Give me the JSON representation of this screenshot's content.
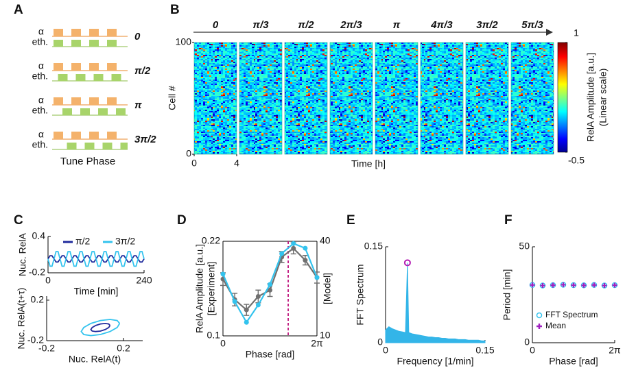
{
  "panels": [
    "A",
    "B",
    "C",
    "D",
    "E",
    "F"
  ],
  "panel_a": {
    "alpha_label": "α",
    "eth_label": "eth.",
    "phases": [
      "0",
      "π/2",
      "π",
      "3π/2"
    ],
    "caption": "Tune Phase"
  },
  "chart_data": [
    {
      "type": "heatmap",
      "columns": [
        "0",
        "π/3",
        "π/2",
        "2π/3",
        "π",
        "4π/3",
        "3π/2",
        "5π/3"
      ],
      "xlabel": "Time [h]",
      "ylabel": "Cell #",
      "xlim": [
        0,
        4
      ],
      "xticks": [
        0,
        4
      ],
      "ylim": [
        0,
        100
      ],
      "yticks": [
        0,
        100
      ],
      "colorbar": {
        "lim": [
          -0.5,
          1
        ],
        "ticks": [
          -0.5,
          1
        ],
        "label": "RelA Amplitude [a.u.]",
        "sublabel": "(Linear scale)"
      }
    },
    {
      "type": "line",
      "xlabel": "Time [min]",
      "ylabel": "Nuc. RelA",
      "xlim": [
        0,
        240
      ],
      "xticks": [
        0,
        240
      ],
      "ylim": [
        -0.2,
        0.4
      ],
      "yticks": [
        -0.2,
        0.4
      ],
      "legend": "upper right",
      "x": [
        0,
        5,
        10,
        15,
        20,
        25,
        30,
        35,
        40,
        45,
        50,
        55,
        60,
        65,
        70,
        75,
        80,
        85,
        90,
        95,
        100,
        105,
        110,
        115,
        120,
        125,
        130,
        135,
        140,
        145,
        150,
        155,
        160,
        165,
        170,
        175,
        180,
        185,
        190,
        195,
        200,
        205,
        210,
        215,
        220,
        225,
        230,
        235,
        240
      ],
      "series": [
        {
          "name": "π/2",
          "color": "#1f2a9c",
          "values": [
            0.03,
            0.082,
            0.082,
            0.03,
            -0.022,
            -0.022,
            0.03,
            0.082,
            0.082,
            0.03,
            -0.022,
            -0.022,
            0.03,
            0.082,
            0.082,
            0.03,
            -0.022,
            -0.022,
            0.03,
            0.082,
            0.082,
            0.03,
            -0.022,
            -0.022,
            0.03,
            0.082,
            0.082,
            0.03,
            -0.022,
            -0.022,
            0.03,
            0.082,
            0.082,
            0.03,
            -0.022,
            -0.022,
            0.03,
            0.082,
            0.082,
            0.03,
            -0.022,
            -0.022,
            0.03,
            0.082,
            0.082,
            0.03,
            -0.022,
            -0.022,
            0.03
          ]
        },
        {
          "name": "3π/2",
          "color": "#33c3ee",
          "values": [
            0.03,
            -0.091,
            -0.091,
            0.03,
            0.151,
            0.151,
            0.03,
            -0.091,
            -0.091,
            0.03,
            0.151,
            0.151,
            0.03,
            -0.091,
            -0.091,
            0.03,
            0.151,
            0.151,
            0.03,
            -0.091,
            -0.091,
            0.03,
            0.151,
            0.151,
            0.03,
            -0.091,
            -0.091,
            0.03,
            0.151,
            0.151,
            0.03,
            -0.091,
            -0.091,
            0.03,
            0.151,
            0.151,
            0.03,
            -0.091,
            -0.091,
            0.03,
            0.151,
            0.151,
            0.03,
            -0.091,
            -0.091,
            0.03,
            0.151,
            0.151,
            0.03
          ]
        }
      ]
    },
    {
      "type": "line",
      "xlabel": "Nuc. RelA(t)",
      "ylabel": "Nuc. RelA(t+τ)",
      "xlim": [
        -0.2,
        0.3
      ],
      "xticks": [
        -0.2,
        0.2
      ],
      "ylim": [
        -0.2,
        0.24
      ],
      "yticks": [
        -0.2,
        0.2
      ],
      "series": [
        {
          "color": "#33c3ee",
          "x": [
            0.18,
            0.167,
            0.13,
            0.08,
            0.03,
            -0.007,
            -0.02,
            -0.007,
            0.03,
            0.08,
            0.13,
            0.167,
            0.18
          ],
          "values": [
            -0.03,
            -0.001,
            0.01,
            -0.001,
            -0.03,
            -0.07,
            -0.11,
            -0.139,
            -0.15,
            -0.139,
            -0.11,
            -0.07,
            -0.03
          ]
        },
        {
          "color": "#1f2a9c",
          "x": [
            0.13,
            0.123,
            0.105,
            0.08,
            0.055,
            0.037,
            0.03,
            0.037,
            0.055,
            0.08,
            0.105,
            0.123,
            0.13
          ],
          "values": [
            -0.05,
            -0.035,
            -0.03,
            -0.035,
            -0.05,
            -0.07,
            -0.09,
            -0.105,
            -0.11,
            -0.105,
            -0.09,
            -0.07,
            -0.05
          ]
        }
      ]
    },
    {
      "type": "line",
      "xlabel": "Phase [rad]",
      "ylabel": "RelA Amplitude [a.u.]",
      "markers": true,
      "legend": "axes",
      "xlim": [
        0,
        6.283
      ],
      "xticks": [
        0,
        {
          "value": 6.283,
          "label": "2π"
        }
      ],
      "ylim": [
        0.1,
        0.22
      ],
      "yticks": [
        0.1,
        0.22
      ],
      "y2lim": [
        10,
        40
      ],
      "y2ticks": [
        10,
        40
      ],
      "vline": 4.36,
      "vline_color": "#c0187f",
      "x": [
        0,
        0.785,
        1.571,
        2.356,
        3.142,
        3.927,
        4.712,
        5.498,
        6.283
      ],
      "series": [
        {
          "name": "[Experiment]",
          "color": "#707070",
          "values": [
            0.172,
            0.146,
            0.133,
            0.15,
            0.158,
            0.2,
            0.211,
            0.196,
            0.174
          ],
          "errors": [
            0.008,
            0.008,
            0.007,
            0.008,
            0.008,
            0.007,
            0.007,
            0.006,
            0.007
          ]
        },
        {
          "name": "[Model]",
          "color": "#33c3ee",
          "axis": "y2",
          "values": [
            29.6,
            20.9,
            14.3,
            19.8,
            26.3,
            36.1,
            39.3,
            37.8,
            28.5
          ]
        }
      ]
    },
    {
      "type": "area",
      "xlabel": "Frequency [1/min]",
      "ylabel": "FFT Spectrum",
      "xlim": [
        0,
        0.15
      ],
      "xticks": [
        0,
        0.15
      ],
      "ylim": [
        0,
        0.15
      ],
      "yticks": [
        0,
        0.15
      ],
      "color": "#33b5e8",
      "x": [
        0,
        0.005,
        0.01,
        0.015,
        0.02,
        0.025,
        0.03,
        0.033,
        0.035,
        0.04,
        0.045,
        0.05,
        0.055,
        0.06,
        0.065,
        0.07,
        0.075,
        0.08,
        0.085,
        0.09,
        0.095,
        0.1,
        0.105,
        0.11,
        0.115,
        0.12,
        0.125,
        0.13,
        0.135,
        0.14,
        0.145,
        0.15
      ],
      "values": [
        0.02,
        0.025,
        0.022,
        0.02,
        0.018,
        0.017,
        0.016,
        0.125,
        0.016,
        0.014,
        0.013,
        0.012,
        0.011,
        0.01,
        0.009,
        0.009,
        0.008,
        0.008,
        0.007,
        0.007,
        0.006,
        0.006,
        0.006,
        0.005,
        0.005,
        0.005,
        0.004,
        0.004,
        0.004,
        0.004,
        0.003,
        0.003
      ],
      "peak": {
        "x": 0.033,
        "y": 0.125,
        "color": "#b41fb4"
      }
    },
    {
      "type": "scatter",
      "xlabel": "Phase [rad]",
      "ylabel": "Period [min]",
      "legend": "lower left",
      "xlim": [
        0,
        6.283
      ],
      "xticks": [
        0,
        {
          "value": 6.283,
          "label": "2π"
        }
      ],
      "ylim": [
        0,
        50
      ],
      "yticks": [
        0,
        50
      ],
      "x": [
        0,
        0.785,
        1.571,
        2.356,
        3.142,
        3.927,
        4.712,
        5.498,
        6.283
      ],
      "series": [
        {
          "name": "FFT Spectrum",
          "color": "#33c3ee",
          "marker": "circle",
          "values": [
            30.1,
            29.8,
            30.0,
            30.2,
            30.0,
            29.9,
            30.1,
            29.8,
            30.0
          ]
        },
        {
          "name": "Mean",
          "color": "#a020c0",
          "marker": "plus",
          "values": [
            30.1,
            29.8,
            30.0,
            30.2,
            30.0,
            29.9,
            30.1,
            29.8,
            30.0
          ]
        }
      ]
    }
  ]
}
